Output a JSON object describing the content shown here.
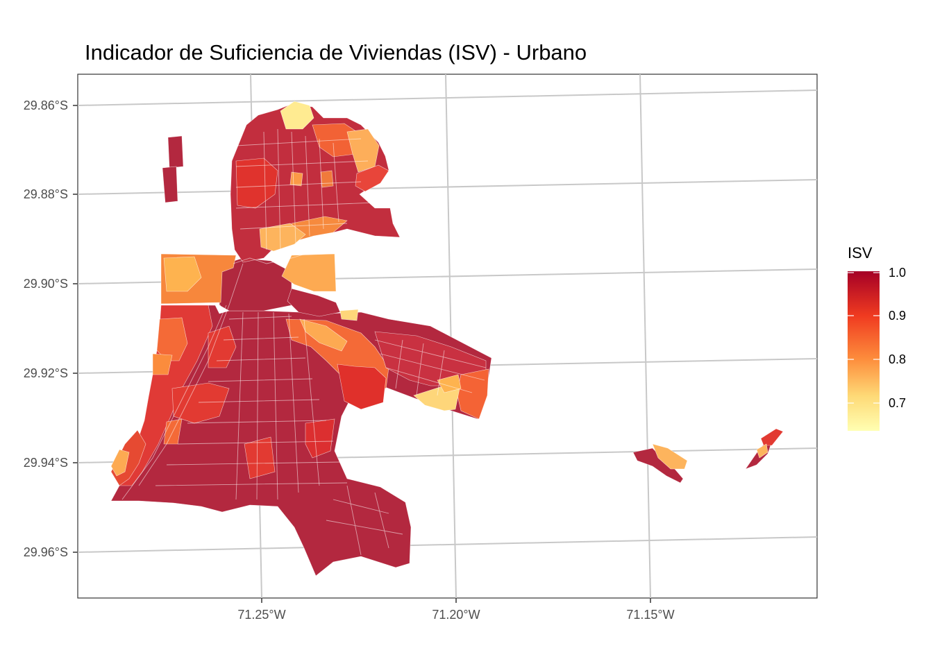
{
  "title": "Indicador de Suficiencia de Viviendas (ISV) - Urbano",
  "axes": {
    "y_ticks": [
      "29.86°S",
      "29.88°S",
      "29.90°S",
      "29.92°S",
      "29.94°S",
      "29.96°S"
    ],
    "x_ticks": [
      "71.25°W",
      "71.20°W",
      "71.15°W"
    ]
  },
  "legend": {
    "title": "ISV",
    "labels": [
      "1.0",
      "0.9",
      "0.8",
      "0.7"
    ],
    "range": [
      0.63,
      1.0
    ],
    "colors": [
      "#ffffb2",
      "#fecc5c",
      "#fd8d3c",
      "#f03b20",
      "#bd0026"
    ]
  },
  "chart_data": {
    "type": "choropleth",
    "title": "Indicador de Suficiencia de Viviendas (ISV) - Urbano",
    "variable": "ISV",
    "scale_min": 0.63,
    "scale_max": 1.0,
    "x_range_deg_w": [
      71.295,
      71.105
    ],
    "y_range_deg_s": [
      29.855,
      29.97
    ],
    "legend_position": "right",
    "grid": true,
    "dominant_value": 0.97
  }
}
